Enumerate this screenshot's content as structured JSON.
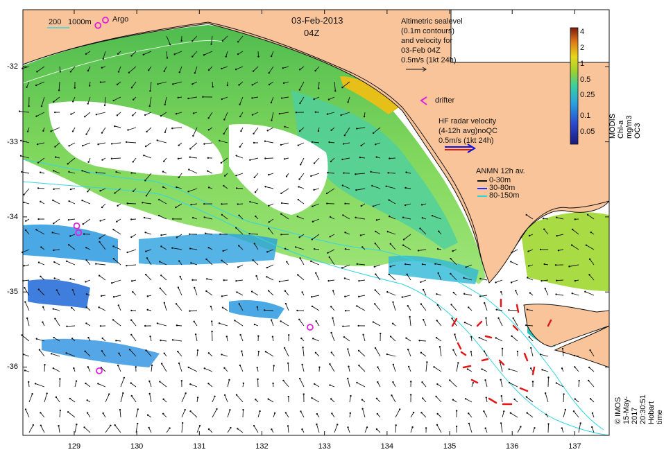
{
  "date_label": "03-Feb-2013",
  "time_label": "04Z",
  "isobath_legend": {
    "depth1": "200",
    "depth2": "1000m"
  },
  "argo_label": "Argo",
  "altimetry_legend": [
    "Altimetric sealevel",
    "(0.1m contours)",
    "and velocity for",
    "03-Feb 04Z",
    "0.5m/s (1kt 24h)"
  ],
  "drifter_label": "drifter",
  "hf_legend": [
    "HF radar velocity",
    "(4-12h avg)noQC",
    "0.5m/s (1kt 24h)"
  ],
  "anmn_legend": {
    "title": "ANMN 12h av.",
    "items": [
      "0-30m",
      "30-80m",
      "80-150m"
    ]
  },
  "colorbar": {
    "label": "MODIS Chl-a mg/m3 OC3",
    "ticks": [
      "4",
      "2",
      "1",
      "0.5",
      "0.25",
      "0.1",
      "0.05"
    ],
    "tick_values": [
      4,
      2,
      1,
      0.5,
      0.25,
      0.1,
      0.05
    ],
    "range": [
      0.03,
      5
    ],
    "scale": "log"
  },
  "x_ticks": [
    "129",
    "130",
    "131",
    "132",
    "133",
    "134",
    "135",
    "136",
    "137"
  ],
  "x_tick_values": [
    129,
    130,
    131,
    132,
    133,
    134,
    135,
    136,
    137
  ],
  "y_ticks": [
    "-32",
    "-33",
    "-34",
    "-35",
    "-36"
  ],
  "y_tick_values": [
    -32,
    -33,
    -34,
    -35,
    -36
  ],
  "x_range": [
    128.18,
    137.55
  ],
  "y_range": [
    -36.91,
    -31.24
  ],
  "argo_floats": [
    {
      "lon": 129.38,
      "lat": -31.45
    },
    {
      "lon": 129.04,
      "lat": -34.12
    },
    {
      "lon": 129.07,
      "lat": -34.21
    },
    {
      "lon": 132.77,
      "lat": -35.47
    },
    {
      "lon": 129.4,
      "lat": -36.05
    }
  ],
  "colors": {
    "land": "#f9c49a",
    "coast": "#111111",
    "isobath": "#33d6e0",
    "argo": "#e020e0",
    "radar": "#e01818",
    "hf_blue": "#1010dd",
    "anmn_blue": "#2030ff",
    "anmn_cyan": "#22d8d8"
  },
  "credit": "© IMOS 15-May-2017 20:30:51 Hobart time"
}
